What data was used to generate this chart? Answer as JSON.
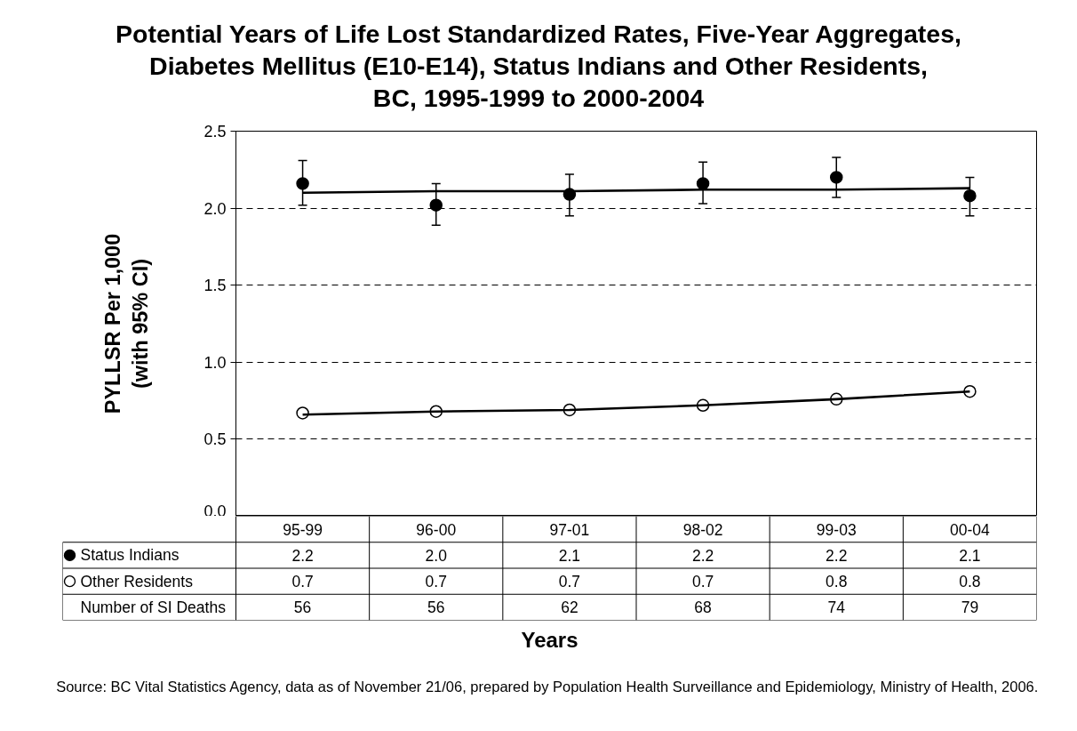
{
  "chart_data": {
    "type": "scatter",
    "title": "Potential Years of Life Lost Standardized Rates, Five-Year Aggregates,\nDiabetes Mellitus (E10-E14), Status Indians and Other Residents,\nBC, 1995-1999 to 2000-2004",
    "xlabel": "Years",
    "ylabel": "PYLLSR Per 1,000\n(with 95% CI)",
    "categories": [
      "95-99",
      "96-00",
      "97-01",
      "98-02",
      "99-03",
      "00-04"
    ],
    "series": [
      {
        "name": "Status Indians",
        "color": "#000000",
        "values": [
          2.16,
          2.02,
          2.09,
          2.16,
          2.2,
          2.08
        ],
        "errors": [
          [
            2.02,
            2.31
          ],
          [
            1.89,
            2.16
          ],
          [
            1.95,
            2.22
          ],
          [
            2.03,
            2.3
          ],
          [
            2.07,
            2.33
          ],
          [
            1.95,
            2.2
          ]
        ],
        "value_labels": [
          "2.2",
          "2.0",
          "2.1",
          "2.2",
          "2.2",
          "2.1"
        ]
      },
      {
        "name": "Other Residents",
        "color": "#ffffff",
        "values": [
          0.67,
          0.68,
          0.69,
          0.72,
          0.76,
          0.81
        ],
        "value_labels": [
          "0.7",
          "0.7",
          "0.7",
          "0.7",
          "0.8",
          "0.8"
        ]
      },
      {
        "type": "line",
        "marker": "none",
        "color": "#000000",
        "values": [
          2.1,
          2.11,
          2.11,
          2.12,
          2.12,
          2.13
        ]
      },
      {
        "type": "line",
        "marker": "none",
        "color": "#000000",
        "values": [
          0.66,
          0.68,
          0.69,
          0.72,
          0.76,
          0.81
        ]
      },
      {
        "name": "Number of SI Deaths",
        "type": "other",
        "values": [
          null,
          null,
          null,
          null,
          null,
          null
        ],
        "value_labels": [
          "56",
          "56",
          "62",
          "68",
          "74",
          "79"
        ]
      }
    ],
    "ylim": [
      0,
      2.5
    ],
    "yticks": [
      {
        "value": 0,
        "label": "0.0"
      },
      0.5,
      {
        "value": 1,
        "label": "1.0"
      },
      1.5,
      {
        "value": 2,
        "label": "2.0"
      },
      2.5
    ],
    "grid": "y",
    "legend": "bottom",
    "marker": "circle",
    "annotations": [
      "Source:  BC Vital Statistics Agency, data as of November 21/06, prepared by Population Health Surveillance and Epidemiology, Ministry of Health, 2006."
    ]
  }
}
